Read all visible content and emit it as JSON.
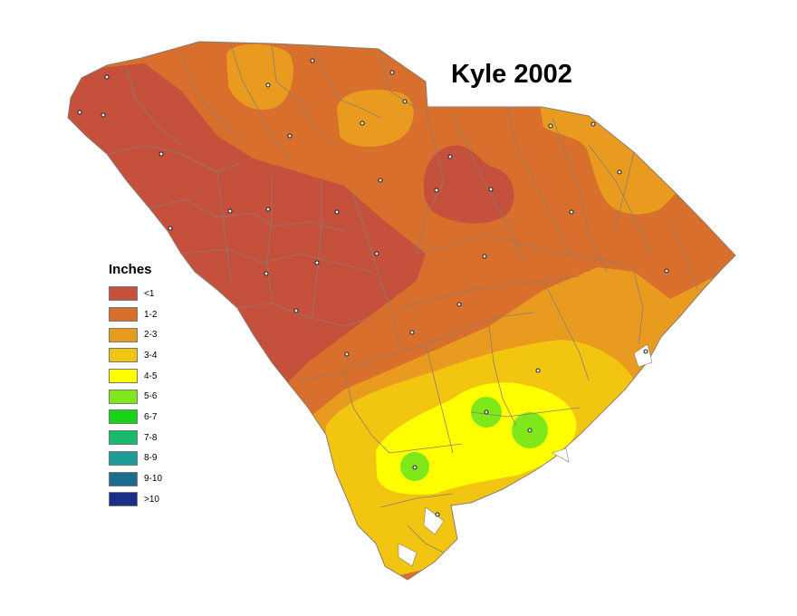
{
  "map": {
    "title": "Kyle 2002",
    "region": "South Carolina",
    "legend": {
      "title": "Inches",
      "classes": [
        {
          "label": "<1",
          "color": "#c5513d"
        },
        {
          "label": "1-2",
          "color": "#d96f2c"
        },
        {
          "label": "2-3",
          "color": "#e99b1f"
        },
        {
          "label": "3-4",
          "color": "#f2c510"
        },
        {
          "label": "4-5",
          "color": "#ffff00"
        },
        {
          "label": "5-6",
          "color": "#7fe81a"
        },
        {
          "label": "6-7",
          "color": "#17d417"
        },
        {
          "label": "7-8",
          "color": "#1ab86b"
        },
        {
          "label": "8-9",
          "color": "#1e9c98"
        },
        {
          "label": "9-10",
          "color": "#1b6d8d"
        },
        {
          "label": ">10",
          "color": "#1a2f86"
        }
      ]
    },
    "background_class": "1-2",
    "station_marker": "small-circle",
    "county_borders": true
  }
}
